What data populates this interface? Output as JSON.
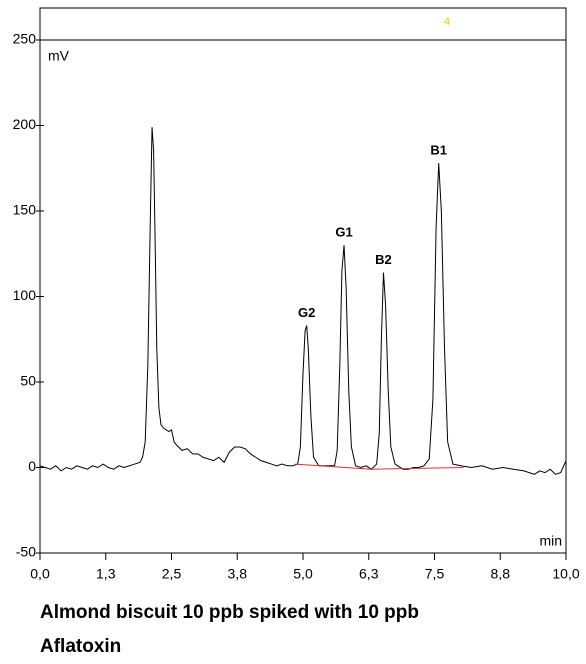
{
  "chart_data": {
    "type": "line",
    "title": "Almond biscuit 10 ppb spiked with 10 ppb Aflatoxin",
    "y_label": "mV",
    "x_label": "min",
    "xlim": [
      0,
      10
    ],
    "ylim": [
      -50,
      250
    ],
    "xticks": [
      {
        "value": 0,
        "label": "0,0"
      },
      {
        "value": 1.25,
        "label": "1,3"
      },
      {
        "value": 2.5,
        "label": "2,5"
      },
      {
        "value": 3.75,
        "label": "3,8"
      },
      {
        "value": 5,
        "label": "5,0"
      },
      {
        "value": 6.25,
        "label": "6,3"
      },
      {
        "value": 7.5,
        "label": "7,5"
      },
      {
        "value": 8.75,
        "label": "8,8"
      },
      {
        "value": 10,
        "label": "10,0"
      }
    ],
    "yticks": [
      -50,
      0,
      50,
      100,
      150,
      200,
      250
    ],
    "series": [
      {
        "color": "#000000",
        "x": [
          0,
          0.1,
          0.2,
          0.3,
          0.4,
          0.5,
          0.6,
          0.7,
          0.8,
          0.9,
          1.0,
          1.1,
          1.2,
          1.3,
          1.4,
          1.5,
          1.6,
          1.7,
          1.8,
          1.9,
          1.95,
          2.0,
          2.05,
          2.1,
          2.13,
          2.16,
          2.19,
          2.22,
          2.26,
          2.3,
          2.35,
          2.4,
          2.45,
          2.5,
          2.55,
          2.6,
          2.7,
          2.8,
          2.9,
          3.0,
          3.1,
          3.2,
          3.3,
          3.4,
          3.5,
          3.6,
          3.7,
          3.8,
          3.9,
          4.0,
          4.1,
          4.2,
          4.3,
          4.4,
          4.5,
          4.6,
          4.7,
          4.8,
          4.9,
          4.95,
          5.0,
          5.04,
          5.07,
          5.1,
          5.15,
          5.2,
          5.3,
          5.4,
          5.5,
          5.6,
          5.65,
          5.7,
          5.74,
          5.78,
          5.82,
          5.87,
          5.92,
          6.0,
          6.1,
          6.2,
          6.3,
          6.4,
          6.45,
          6.49,
          6.53,
          6.57,
          6.62,
          6.67,
          6.75,
          6.9,
          7.0,
          7.1,
          7.2,
          7.3,
          7.4,
          7.47,
          7.53,
          7.58,
          7.63,
          7.69,
          7.75,
          7.85,
          8.0,
          8.2,
          8.4,
          8.6,
          8.8,
          9.0,
          9.2,
          9.3,
          9.4,
          9.5,
          9.6,
          9.7,
          9.8,
          9.9,
          10.0
        ],
        "values": [
          1,
          0,
          -1,
          1,
          -2,
          0,
          -1,
          1,
          0,
          -1,
          1,
          0,
          2,
          0,
          -1,
          1,
          0,
          1,
          2,
          3,
          6,
          15,
          60,
          150,
          199,
          185,
          130,
          70,
          35,
          25,
          23,
          22,
          21,
          22,
          15,
          13,
          10,
          11,
          8,
          8,
          6,
          5,
          4,
          6,
          3,
          9,
          12,
          12,
          11,
          8,
          6,
          4,
          3,
          2,
          1,
          2,
          1,
          1,
          2,
          12,
          55,
          80,
          83,
          70,
          30,
          6,
          1,
          1,
          1,
          1,
          10,
          60,
          115,
          130,
          105,
          45,
          12,
          1,
          0,
          1,
          -1,
          2,
          20,
          75,
          114,
          95,
          45,
          12,
          2,
          -1,
          -1,
          0,
          0,
          1,
          5,
          40,
          140,
          178,
          150,
          70,
          15,
          2,
          1,
          0,
          1,
          -1,
          0,
          -1,
          -2,
          -3,
          -4,
          -2,
          -3,
          -1,
          -4,
          -3,
          4
        ]
      },
      {
        "color": "#e0302a",
        "x": [
          4.85,
          6.3,
          8.05
        ],
        "values": [
          2,
          -1,
          0
        ]
      }
    ],
    "annotations": [
      {
        "text": "G2",
        "x": 5.07,
        "y": 83
      },
      {
        "text": "G1",
        "x": 5.78,
        "y": 130
      },
      {
        "text": "B2",
        "x": 6.53,
        "y": 114
      },
      {
        "text": "B1",
        "x": 7.58,
        "y": 178
      }
    ],
    "marker": {
      "text": "4",
      "x": 7.74,
      "color": "#e8c800"
    }
  }
}
